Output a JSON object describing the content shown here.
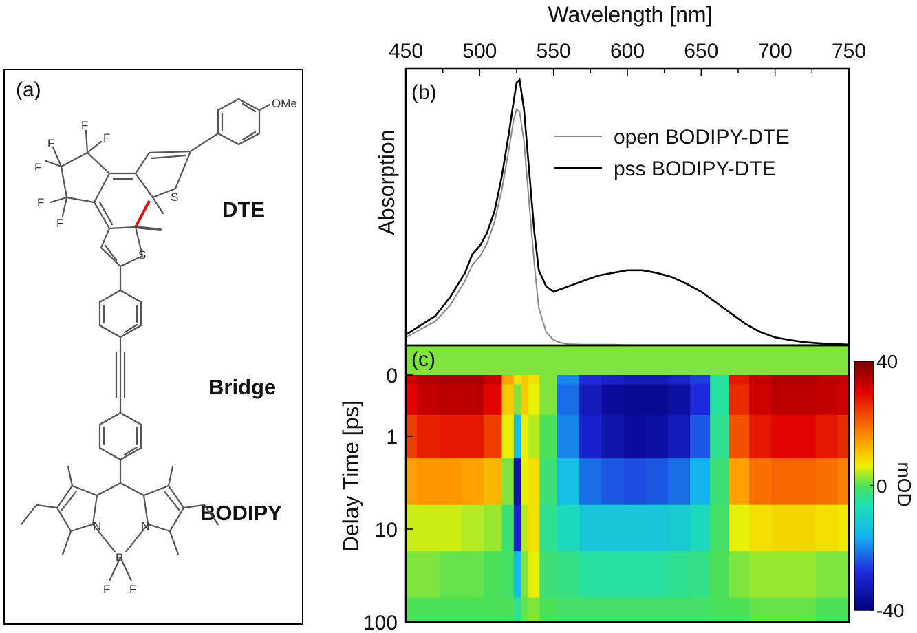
{
  "panel_a": {
    "label": "(a)",
    "segments": {
      "dte": "DTE",
      "bridge": "Bridge",
      "bodipy": "BODIPY"
    },
    "atoms": {
      "ome": "OMe",
      "f": "F",
      "s": "S",
      "n": "N",
      "b": "B"
    }
  },
  "colors": {
    "open": "#8a8a8a",
    "pss": "#000000",
    "bond_highlight": "#e01010"
  },
  "chart_data": [
    {
      "panel": "(b)",
      "type": "line",
      "title": "",
      "xlabel": "Wavelength [nm]",
      "ylabel": "Absorption",
      "xlim": [
        450,
        750
      ],
      "xticks": [
        450,
        500,
        550,
        600,
        650,
        700,
        750
      ],
      "x_axis_position": "top",
      "yticks": [],
      "legend_position": "top-right",
      "x": [
        450,
        470,
        480,
        490,
        495,
        500,
        505,
        510,
        515,
        520,
        523,
        525,
        527,
        530,
        533,
        537,
        540,
        545,
        550,
        555,
        560,
        570,
        580,
        590,
        600,
        610,
        620,
        630,
        640,
        650,
        660,
        670,
        680,
        690,
        700,
        710,
        720,
        730,
        740,
        750
      ],
      "series": [
        {
          "name": "open BODIPY-DTE",
          "color": "#8a8a8a",
          "values": [
            0.03,
            0.09,
            0.15,
            0.24,
            0.3,
            0.33,
            0.38,
            0.46,
            0.58,
            0.74,
            0.84,
            0.88,
            0.87,
            0.76,
            0.56,
            0.3,
            0.14,
            0.05,
            0.02,
            0.01,
            0.005,
            0.003,
            0.003,
            0.003,
            0.002,
            0.002,
            0.002,
            0.002,
            0.002,
            0.002,
            0.002,
            0.002,
            0.002,
            0.002,
            0.002,
            0.002,
            0.002,
            0.002,
            0.002,
            0.002
          ]
        },
        {
          "name": "pss BODIPY-DTE",
          "color": "#000000",
          "values": [
            0.04,
            0.11,
            0.18,
            0.27,
            0.34,
            0.37,
            0.42,
            0.5,
            0.63,
            0.8,
            0.91,
            0.98,
            0.99,
            0.88,
            0.68,
            0.42,
            0.28,
            0.22,
            0.2,
            0.21,
            0.22,
            0.24,
            0.26,
            0.27,
            0.28,
            0.28,
            0.27,
            0.255,
            0.23,
            0.2,
            0.16,
            0.12,
            0.08,
            0.05,
            0.03,
            0.02,
            0.012,
            0.008,
            0.005,
            0.003
          ]
        }
      ]
    },
    {
      "panel": "(c)",
      "type": "heatmap",
      "title": "",
      "xlabel": "",
      "ylabel": "Delay Time [ps]",
      "xlim": [
        450,
        750
      ],
      "ylim": [
        0,
        100
      ],
      "y_scale": "log-after-zero",
      "yticks": [
        0,
        1,
        10,
        100
      ],
      "colorbar": {
        "label": "mOD",
        "min": -40,
        "max": 40,
        "ticks": [
          40,
          0,
          -40
        ]
      },
      "x": [
        450,
        465,
        480,
        495,
        510,
        520,
        526,
        530,
        536,
        545,
        560,
        575,
        590,
        605,
        620,
        635,
        650,
        662,
        675,
        690,
        705,
        720,
        735,
        750
      ],
      "y": [
        0,
        0.3,
        1,
        3,
        10,
        30,
        100
      ],
      "z": [
        [
          32,
          35,
          36,
          36,
          33,
          14,
          8,
          10,
          8,
          2,
          -20,
          -28,
          -30,
          -32,
          -32,
          -30,
          -26,
          -5,
          28,
          33,
          35,
          35,
          34,
          33
        ],
        [
          30,
          33,
          34,
          34,
          30,
          10,
          2,
          10,
          6,
          2,
          -22,
          -32,
          -36,
          -37,
          -37,
          -35,
          -28,
          -5,
          26,
          32,
          34,
          34,
          33,
          32
        ],
        [
          24,
          27,
          28,
          28,
          24,
          6,
          -14,
          6,
          4,
          0,
          -20,
          -30,
          -34,
          -36,
          -35,
          -32,
          -24,
          -4,
          22,
          28,
          30,
          30,
          28,
          26
        ],
        [
          14,
          15,
          15,
          14,
          12,
          2,
          -34,
          6,
          8,
          -2,
          -14,
          -22,
          -24,
          -25,
          -24,
          -22,
          -16,
          -2,
          14,
          19,
          20,
          20,
          19,
          17
        ],
        [
          5,
          5,
          5,
          4,
          3,
          -2,
          -30,
          4,
          8,
          -4,
          -8,
          -12,
          -12,
          -12,
          -12,
          -11,
          -8,
          -1,
          6,
          8,
          9,
          9,
          8,
          7
        ],
        [
          2,
          2,
          1,
          1,
          0,
          -1,
          -14,
          2,
          6,
          -2,
          -3,
          -5,
          -5,
          -5,
          -5,
          -4,
          -3,
          0,
          2,
          3,
          3,
          3,
          2,
          2
        ],
        [
          0,
          0,
          0,
          0,
          0,
          0,
          -4,
          1,
          2,
          0,
          -1,
          -1,
          -1,
          -1,
          -1,
          -1,
          -1,
          0,
          0,
          1,
          1,
          1,
          0,
          0
        ]
      ]
    }
  ]
}
